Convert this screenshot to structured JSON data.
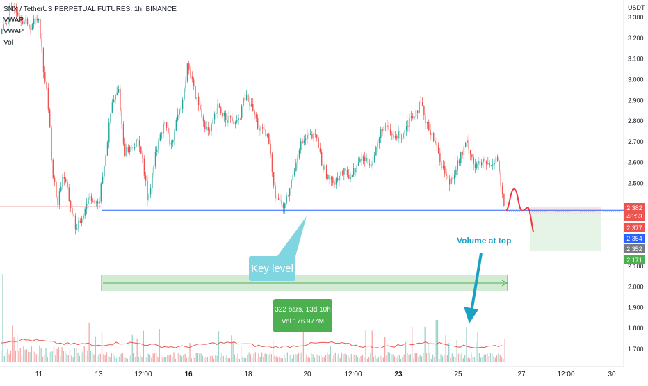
{
  "legend": {
    "title": "SNX / TetherUS PERPETUAL FUTURES, 1h, BINANCE",
    "ind1": "VWAP",
    "ind2": "VWAP",
    "ind3": "Vol"
  },
  "price_axis": {
    "currency": "USDT",
    "ticks": [
      "3.300",
      "3.200",
      "3.100",
      "3.000",
      "2.900",
      "2.800",
      "2.700",
      "2.600",
      "2.500",
      "2.100",
      "2.000",
      "1.900",
      "1.800",
      "1.700"
    ]
  },
  "time_axis": {
    "ticks": [
      {
        "label": "11",
        "bold": false
      },
      {
        "label": "13",
        "bold": false
      },
      {
        "label": "12:00",
        "bold": false
      },
      {
        "label": "16",
        "bold": true
      },
      {
        "label": "18",
        "bold": false
      },
      {
        "label": "20",
        "bold": false
      },
      {
        "label": "12:00",
        "bold": false
      },
      {
        "label": "23",
        "bold": true
      },
      {
        "label": "25",
        "bold": false
      },
      {
        "label": "27",
        "bold": false
      },
      {
        "label": "12:00",
        "bold": false
      },
      {
        "label": "30",
        "bold": false
      }
    ]
  },
  "price_tags": [
    {
      "label": "2.382",
      "sub": "46:53",
      "color": "#ef5350"
    },
    {
      "label": "2.377",
      "color": "#ef5350"
    },
    {
      "label": "2.354",
      "color": "#2962ff"
    },
    {
      "label": "2.352",
      "color": "#787b86"
    },
    {
      "label": "2.171",
      "color": "#4caf50"
    }
  ],
  "annotations": {
    "key_level": "Key level",
    "volume_note": "Volume at top",
    "range_line1": "322 bars, 13d 10h",
    "range_line2": "Vol 176.977M"
  },
  "colors": {
    "up": "#26a69a",
    "down": "#ef5350",
    "key_level_line": "#2962ff",
    "callout": "#7fd6e0",
    "projection": "#f23645"
  },
  "chart_data": {
    "type": "candlestick",
    "title": "SNX / TetherUS PERPETUAL FUTURES, 1h, BINANCE",
    "ylabel": "USDT",
    "ylim": [
      1.65,
      3.35
    ],
    "key_level": 2.37,
    "current_price": 2.377,
    "approx_close_path": [
      {
        "x": "11",
        "y": 3.3
      },
      {
        "x": "11",
        "y": 2.9
      },
      {
        "x": "12",
        "y": 2.45
      },
      {
        "x": "12",
        "y": 2.25
      },
      {
        "x": "13",
        "y": 2.4
      },
      {
        "x": "14",
        "y": 2.85
      },
      {
        "x": "14",
        "y": 2.7
      },
      {
        "x": "15",
        "y": 2.6
      },
      {
        "x": "16",
        "y": 3.1
      },
      {
        "x": "17",
        "y": 2.8
      },
      {
        "x": "18",
        "y": 2.9
      },
      {
        "x": "19",
        "y": 2.55
      },
      {
        "x": "19",
        "y": 2.38
      },
      {
        "x": "20",
        "y": 2.7
      },
      {
        "x": "21",
        "y": 2.5
      },
      {
        "x": "22",
        "y": 2.6
      },
      {
        "x": "23",
        "y": 2.8
      },
      {
        "x": "24",
        "y": 2.9
      },
      {
        "x": "24",
        "y": 2.65
      },
      {
        "x": "25",
        "y": 2.55
      },
      {
        "x": "26",
        "y": 2.67
      },
      {
        "x": "26",
        "y": 2.377
      }
    ]
  }
}
